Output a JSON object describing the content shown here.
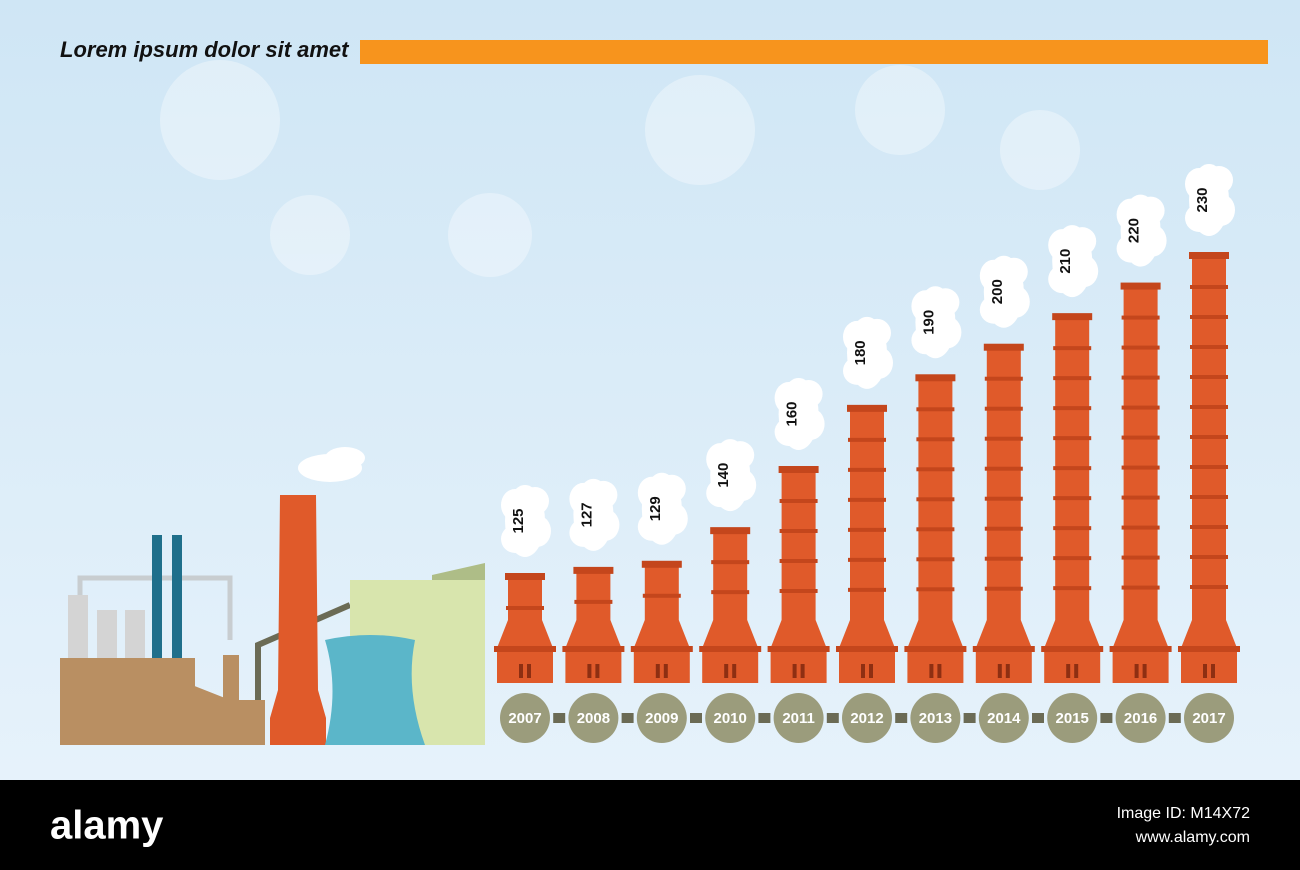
{
  "chart_data": {
    "type": "bar",
    "title": "Lorem ipsum dolor sit amet",
    "categories": [
      "2007",
      "2008",
      "2009",
      "2010",
      "2011",
      "2012",
      "2013",
      "2014",
      "2015",
      "2016",
      "2017"
    ],
    "values": [
      125,
      127,
      129,
      140,
      160,
      180,
      190,
      200,
      210,
      220,
      230
    ],
    "color": "#e05a2a",
    "ylim": [
      90,
      230
    ]
  },
  "footer": {
    "logo": "alamy",
    "image_id": "Image ID: M14X72",
    "site": "www.alamy.com"
  }
}
